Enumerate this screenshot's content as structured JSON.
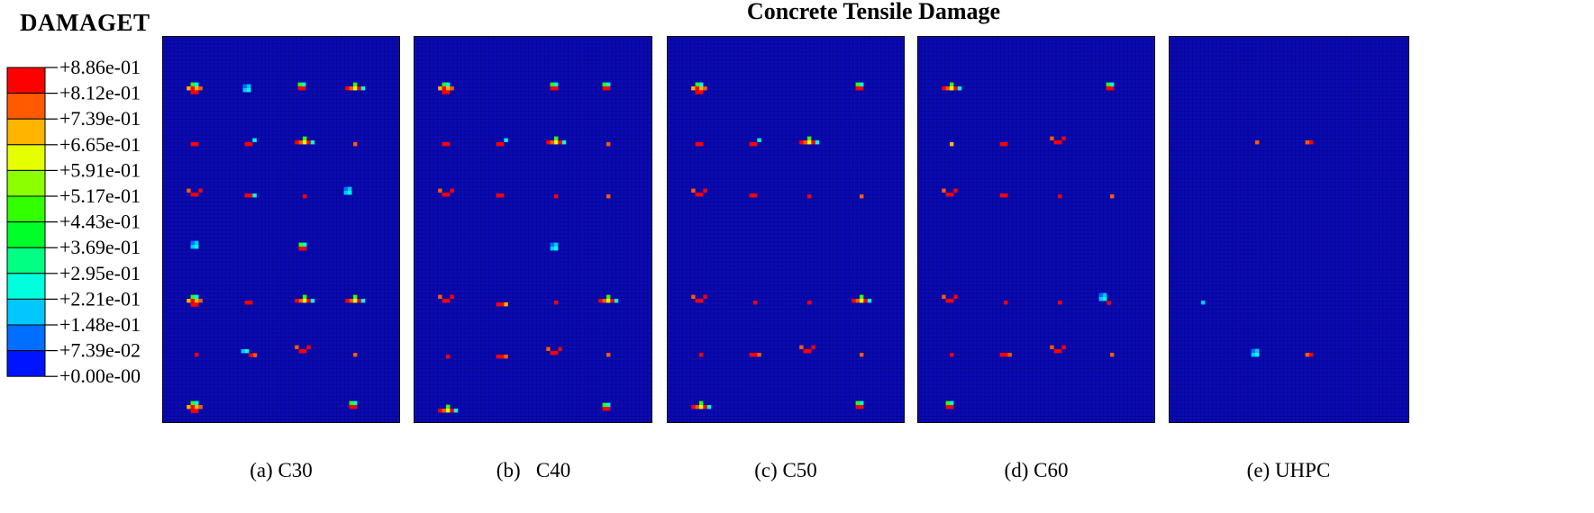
{
  "title": "Concrete Tensile Damage",
  "legend": {
    "title": "DAMAGET",
    "values": [
      "+8.86e-01",
      "+8.12e-01",
      "+7.39e-01",
      "+6.65e-01",
      "+5.91e-01",
      "+5.17e-01",
      "+4.43e-01",
      "+3.69e-01",
      "+2.95e-01",
      "+2.21e-01",
      "+1.48e-01",
      "+7.39e-02",
      "+0.00e-00"
    ],
    "colors": [
      "#ff0000",
      "#ff5a00",
      "#ffb400",
      "#e6ff00",
      "#8cff00",
      "#32ff00",
      "#00ff28",
      "#00ff82",
      "#00ffdc",
      "#00c8ff",
      "#006eff",
      "#0014ff"
    ]
  },
  "mesh_color": "#0a0ab4",
  "panels": [
    {
      "caption": "(a) C30",
      "damage_rows": 8
    },
    {
      "caption": "(b)   C40",
      "damage_rows": 8
    },
    {
      "caption": "(c) C50",
      "damage_rows": 8
    },
    {
      "caption": "(d) C60",
      "damage_rows": 8
    },
    {
      "caption": "(e) UHPC",
      "damage_rows": 3
    }
  ]
}
